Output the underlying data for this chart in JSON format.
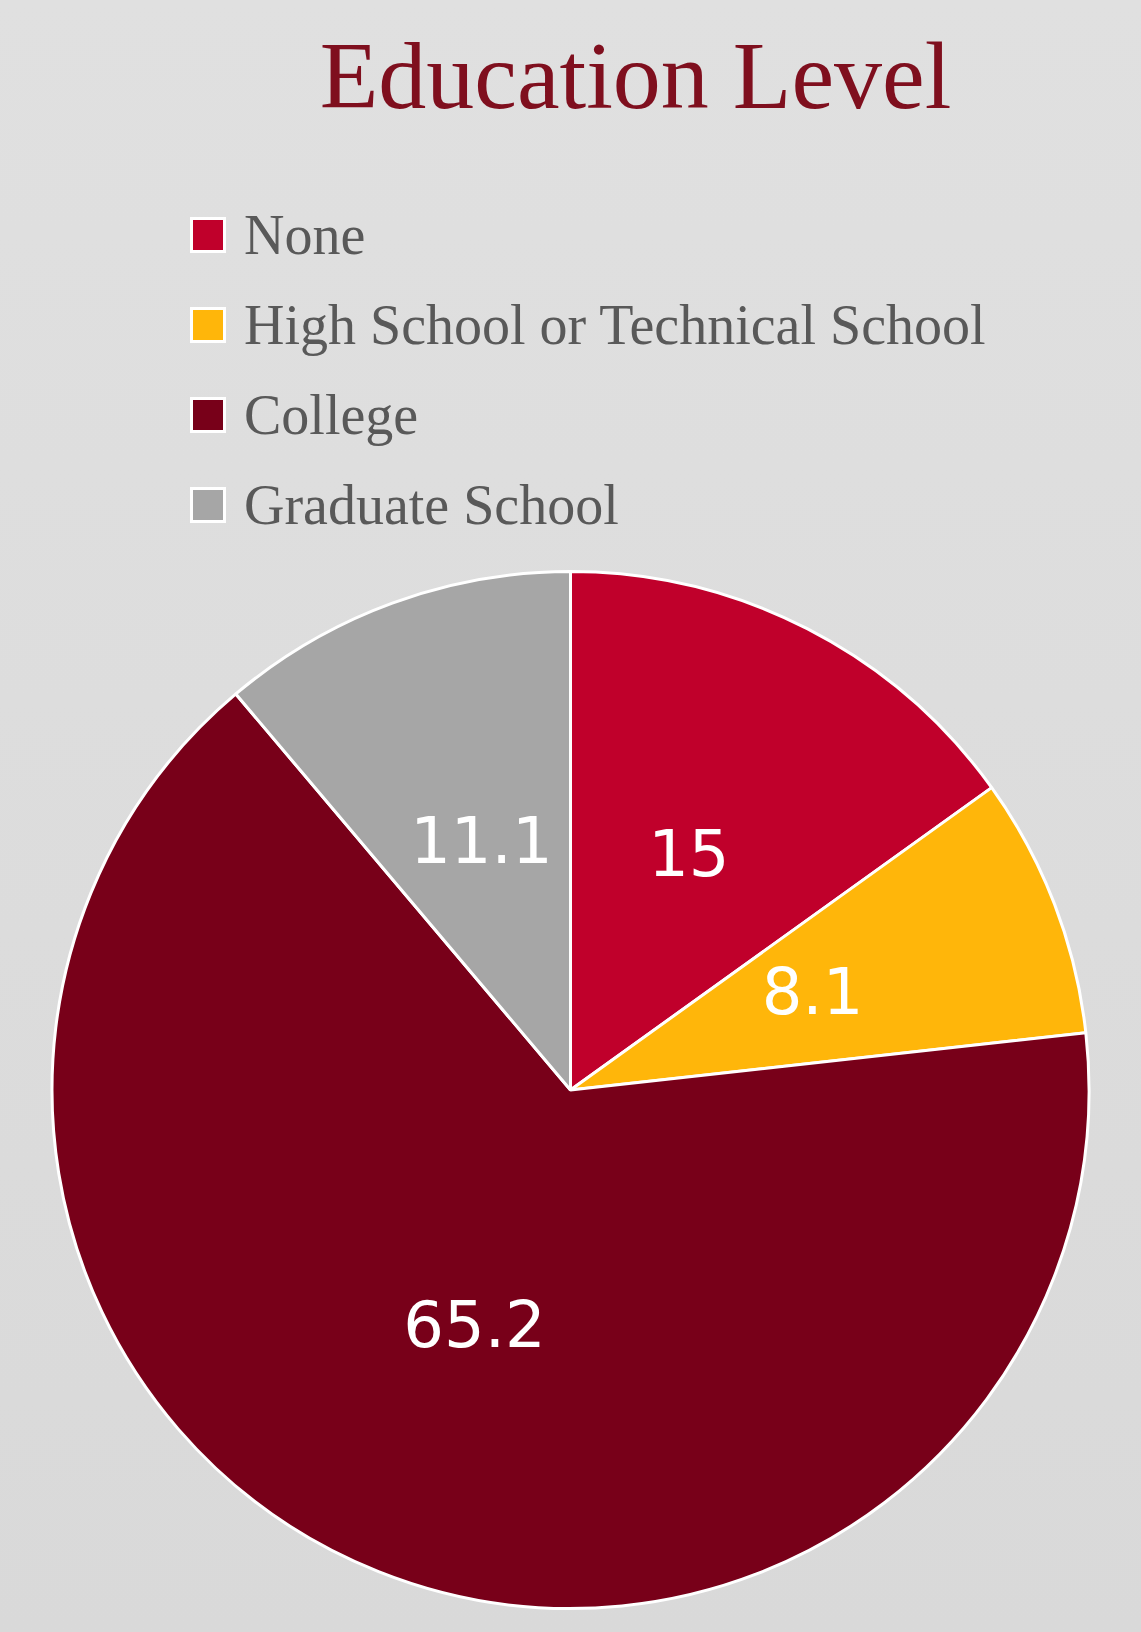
{
  "chart_data": {
    "type": "pie",
    "title": "Education Level",
    "categories": [
      "None",
      "High School or Technical School",
      "College",
      "Graduate School"
    ],
    "values": [
      15,
      8.1,
      65.2,
      11.1
    ],
    "colors": [
      "#c0002b",
      "#ffb60a",
      "#780019",
      "#a6a6a6"
    ],
    "data_labels": true,
    "legend": "top left"
  }
}
